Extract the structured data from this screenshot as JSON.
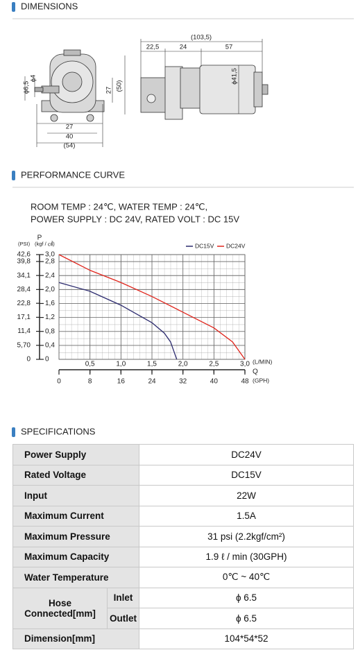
{
  "sections": {
    "dimensions": "DIMENSIONS",
    "performance": "PERFORMANCE CURVE",
    "specifications": "SPECIFICATIONS"
  },
  "dimensions": {
    "front": [
      "ϕ6,5",
      "ϕ4",
      "27",
      "(50)",
      "27",
      "40",
      "(54)"
    ],
    "side": [
      "(103,5)",
      "22,5",
      "24",
      "57",
      "ϕ41,5"
    ]
  },
  "conditions": [
    "ROOM TEMP : 24℃, WATER TEMP : 24℃,",
    "POWER SUPPLY : DC 24V, RATED VOLT : DC 15V"
  ],
  "chart_data": {
    "type": "line",
    "y_label": "P",
    "y_unit": "(kgf / ㎠)",
    "y2_unit": "(PSI)",
    "x_unit": "(L/MIN)",
    "x2_label": "Q",
    "x2_unit": "(GPH)",
    "xlim": [
      0,
      3.0
    ],
    "xticks": [
      {
        "value": 0.5,
        "label": "0,5"
      },
      {
        "value": 1.0,
        "label": "1,0"
      },
      {
        "value": 1.5,
        "label": "1,5"
      },
      {
        "value": 2.0,
        "label": "2,0"
      },
      {
        "value": 2.5,
        "label": "2,5"
      },
      {
        "value": 3.0,
        "label": "3,0"
      }
    ],
    "x2lim": [
      0,
      48
    ],
    "x2ticks": [
      0,
      8,
      16,
      24,
      32,
      40,
      48
    ],
    "ylim": [
      0,
      3.0
    ],
    "yticks": [
      0,
      {
        "value": 0.4,
        "label": "0,4"
      },
      {
        "value": 0.8,
        "label": "0,8"
      },
      {
        "value": 1.2,
        "label": "1,2"
      },
      {
        "value": 1.6,
        "label": "1,6"
      },
      {
        "value": 2.0,
        "label": "2,0"
      },
      {
        "value": 2.4,
        "label": "2,4"
      },
      {
        "value": 2.8,
        "label": "2,8"
      },
      {
        "value": 3.0,
        "label": "3,0"
      }
    ],
    "y2lim": [
      0,
      42.6
    ],
    "y2ticks": [
      0,
      {
        "value": 5.7,
        "label": "5,70"
      },
      {
        "value": 11.4,
        "label": "11,4"
      },
      {
        "value": 17.1,
        "label": "17,1"
      },
      {
        "value": 22.8,
        "label": "22,8"
      },
      {
        "value": 28.4,
        "label": "28,4"
      },
      {
        "value": 34.1,
        "label": "34,1"
      },
      {
        "value": 39.8,
        "label": "39,8"
      },
      {
        "value": 42.6,
        "label": "42,6"
      }
    ],
    "grid": true,
    "legend": "top-right",
    "series": [
      {
        "name": "DC15V",
        "color": "#2b2a6e",
        "x": [
          0,
          0.5,
          1.0,
          1.5,
          1.7,
          1.8,
          1.9
        ],
        "values": [
          2.2,
          1.95,
          1.55,
          1.05,
          0.75,
          0.5,
          0
        ]
      },
      {
        "name": "DC24V",
        "color": "#e0241b",
        "x": [
          0,
          0.5,
          1.0,
          1.5,
          2.0,
          2.5,
          2.8,
          3.0
        ],
        "values": [
          3.0,
          2.55,
          2.2,
          1.8,
          1.35,
          0.9,
          0.5,
          0
        ]
      }
    ]
  },
  "table": {
    "rows": [
      [
        "Power Supply",
        "DC24V"
      ],
      [
        "Rated Voltage",
        "DC15V"
      ],
      [
        "Input",
        "22W"
      ],
      [
        "Maximum Current",
        "1.5A"
      ],
      [
        "Maximum Pressure",
        "31 psi (2.2kgf/cm²)"
      ],
      [
        "Maximum Capacity",
        "1.9 ℓ / min (30GPH)"
      ],
      [
        "Water Temperature",
        "0℃ ~ 40℃"
      ]
    ],
    "hose": {
      "label": "Hose Connected[mm]",
      "rows": [
        [
          "Inlet",
          "ϕ 6.5"
        ],
        [
          "Outlet",
          "ϕ 6.5"
        ]
      ]
    },
    "dimension": [
      "Dimension[mm]",
      "104*54*52"
    ]
  }
}
